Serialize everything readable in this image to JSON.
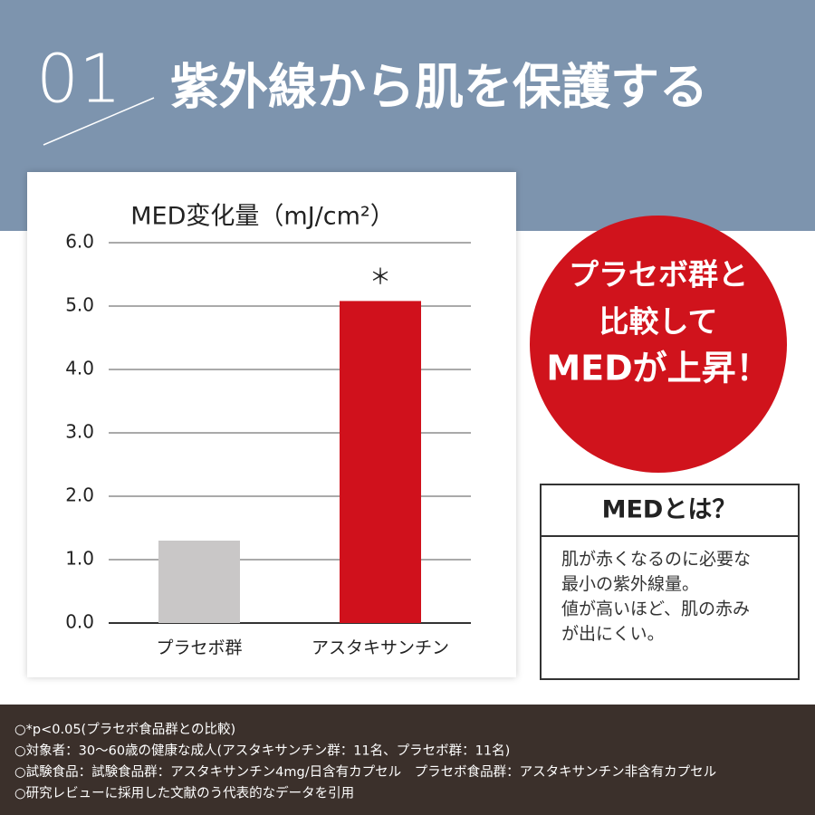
{
  "header": {
    "number": "01",
    "title": "紫外線から肌を保護する"
  },
  "chart_data": {
    "type": "bar",
    "title": "MED変化量（mJ/cm²）",
    "categories": [
      "プラセボ群",
      "アスタキサンチン"
    ],
    "series": [
      {
        "name": "MED変化量",
        "values": [
          1.3,
          5.08
        ],
        "colors": [
          "#c9c7c7",
          "#d0111c"
        ]
      }
    ],
    "annotation": "＊",
    "ylim": [
      0,
      6
    ],
    "yticks": [
      {
        "value": 0,
        "label": "0.0"
      },
      {
        "value": 1,
        "label": "1.0"
      },
      {
        "value": 2,
        "label": "2.0"
      },
      {
        "value": 3,
        "label": "3.0"
      },
      {
        "value": 4,
        "label": "4.0"
      },
      {
        "value": 5,
        "label": "5.0"
      },
      {
        "value": 6,
        "label": "6.0"
      }
    ],
    "grid": true
  },
  "badge": {
    "lines": [
      "プラセボ群と",
      "比較して",
      "MEDが上昇！"
    ]
  },
  "info_box": {
    "title": "MEDとは？",
    "lines": [
      "肌が赤くなるのに必要な",
      "最小の紫外線量。",
      "値が高いほど、肌の赤み",
      "が出にくい。"
    ]
  },
  "footnotes": [
    "○*p<0.05(プラセボ食品群との比較)",
    "○対象者：30～60歳の健康な成人(アスタキサンチン群：11名、プラセボ群：11名)",
    "○試験食品：試験食品群：アスタキサンチン4mg/日含有カプセル　プラセボ食品群：アスタキサンチン非含有カプセル",
    "○研究レビューに採用した文献のう代表的なデータを引用"
  ]
}
